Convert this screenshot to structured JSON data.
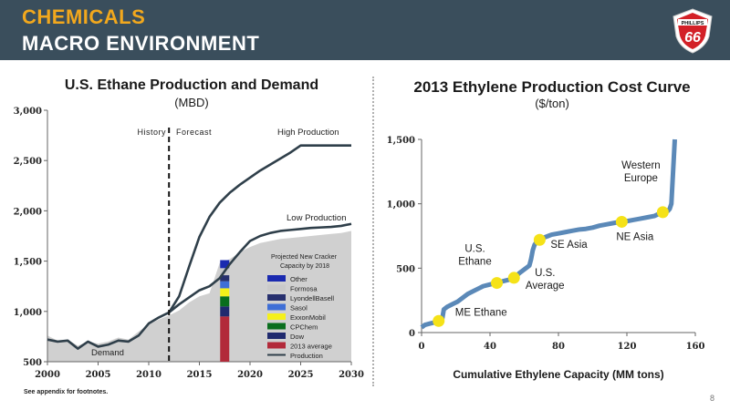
{
  "header": {
    "title_line1": "CHEMICALS",
    "title_line2": "MACRO ENVIRONMENT",
    "logo_text_top": "PHILLIPS",
    "logo_text_main": "66",
    "colors": {
      "banner": "#3a4e5c",
      "title_accent": "#f2a81d",
      "logo_red": "#d32027"
    }
  },
  "footnote": "See appendix for footnotes.",
  "page_number": "8",
  "chart_data": [
    {
      "type": "area",
      "title": "U.S. Ethane Production and Demand",
      "subtitle": "(MBD)",
      "xlim": [
        2000,
        2030
      ],
      "ylim": [
        500,
        3000
      ],
      "x_ticks": [
        "2000",
        "2005",
        "2010",
        "2015",
        "2020",
        "2025",
        "2030"
      ],
      "y_ticks": [
        "500",
        "1,000",
        "1,500",
        "2,000",
        "2,500",
        "3,000"
      ],
      "history_forecast_split": 2012,
      "labels": {
        "history": "History",
        "forecast": "Forecast",
        "high": "High Production",
        "low": "Low Production",
        "demand": "Demand",
        "cracker_title": "Projected New Cracker Capacity by 2018"
      },
      "demand_area": {
        "x": [
          2000,
          2001,
          2002,
          2003,
          2004,
          2005,
          2006,
          2007,
          2008,
          2009,
          2010,
          2011,
          2012,
          2013,
          2014,
          2015,
          2016,
          2017,
          2018,
          2019,
          2020,
          2021,
          2022,
          2023,
          2024,
          2025,
          2026,
          2027,
          2028,
          2029,
          2030
        ],
        "y": [
          760,
          710,
          720,
          660,
          700,
          680,
          700,
          740,
          720,
          800,
          870,
          920,
          960,
          1010,
          1090,
          1150,
          1180,
          1480,
          1520,
          1590,
          1640,
          1680,
          1700,
          1720,
          1730,
          1740,
          1750,
          1760,
          1770,
          1780,
          1800
        ]
      },
      "series": [
        {
          "name": "Production",
          "x": [
            2000,
            2001,
            2002,
            2003,
            2004,
            2005,
            2006,
            2007,
            2008,
            2009,
            2010,
            2011,
            2012
          ],
          "y": [
            720,
            700,
            710,
            630,
            700,
            650,
            670,
            710,
            700,
            760,
            880,
            940,
            990
          ]
        },
        {
          "name": "High Production",
          "x": [
            2012,
            2013,
            2014,
            2015,
            2016,
            2017,
            2018,
            2019,
            2020,
            2021,
            2022,
            2023,
            2024,
            2025,
            2026,
            2027,
            2028,
            2029,
            2030
          ],
          "y": [
            990,
            1150,
            1450,
            1740,
            1940,
            2080,
            2180,
            2260,
            2330,
            2400,
            2460,
            2520,
            2580,
            2650,
            2650,
            2650,
            2650,
            2650,
            2650
          ]
        },
        {
          "name": "Low Production",
          "x": [
            2012,
            2013,
            2014,
            2015,
            2016,
            2017,
            2018,
            2019,
            2020,
            2021,
            2022,
            2023,
            2024,
            2025,
            2026,
            2027,
            2028,
            2029,
            2030
          ],
          "y": [
            990,
            1070,
            1140,
            1210,
            1250,
            1330,
            1470,
            1590,
            1700,
            1750,
            1780,
            1800,
            1810,
            1820,
            1830,
            1835,
            1840,
            1850,
            1870
          ]
        }
      ],
      "stacked_bar": {
        "x": 2017.5,
        "segments": [
          {
            "name": "2013 average",
            "from": 500,
            "to": 950,
            "color": "#b22a3a"
          },
          {
            "name": "Dow",
            "from": 950,
            "to": 1050,
            "color": "#1f2a6e"
          },
          {
            "name": "CPChem",
            "from": 1050,
            "to": 1150,
            "color": "#0a6e1e"
          },
          {
            "name": "ExxonMobil",
            "from": 1150,
            "to": 1230,
            "color": "#f5f01a"
          },
          {
            "name": "Sasol",
            "from": 1230,
            "to": 1300,
            "color": "#3f6fd6"
          },
          {
            "name": "LyondellBasell",
            "from": 1300,
            "to": 1360,
            "color": "#27306e"
          },
          {
            "name": "Formosa",
            "from": 1360,
            "to": 1430,
            "color": "#c9c9c9"
          },
          {
            "name": "Other",
            "from": 1430,
            "to": 1510,
            "color": "#1a2ab0"
          }
        ]
      },
      "legend": [
        {
          "name": "Other",
          "color": "#1a2ab0",
          "kind": "box"
        },
        {
          "name": "Formosa",
          "color": "#c9c9c9",
          "kind": "box"
        },
        {
          "name": "LyondellBasell",
          "color": "#27306e",
          "kind": "box"
        },
        {
          "name": "Sasol",
          "color": "#3f6fd6",
          "kind": "box"
        },
        {
          "name": "ExxonMobil",
          "color": "#f5f01a",
          "kind": "box"
        },
        {
          "name": "CPChem",
          "color": "#0a6e1e",
          "kind": "box"
        },
        {
          "name": "Dow",
          "color": "#1f2a6e",
          "kind": "box"
        },
        {
          "name": "2013 average",
          "color": "#b22a3a",
          "kind": "box"
        },
        {
          "name": "Production",
          "color": "#2f3f4a",
          "kind": "line"
        }
      ],
      "colors": {
        "area": "#d0d0d0",
        "line": "#2f3f4a"
      }
    },
    {
      "type": "line",
      "title": "2013 Ethylene Production Cost Curve",
      "subtitle": "($/ton)",
      "xlabel": "Cumulative Ethylene Capacity (MM tons)",
      "xlim": [
        0,
        160
      ],
      "ylim": [
        0,
        1500
      ],
      "x_ticks": [
        "0",
        "40",
        "80",
        "120",
        "160"
      ],
      "y_ticks": [
        "0",
        "500",
        "1,000",
        "1,500"
      ],
      "curve": {
        "x": [
          0,
          2,
          5,
          8,
          12,
          13,
          15,
          18,
          21,
          24,
          27,
          30,
          33,
          36,
          39,
          42,
          45,
          48,
          51,
          54,
          57,
          60,
          63,
          64,
          65,
          66,
          67,
          68,
          70,
          72,
          74,
          76,
          80,
          84,
          88,
          92,
          96,
          100,
          104,
          108,
          112,
          116,
          120,
          124,
          128,
          132,
          136,
          140,
          142,
          144,
          145,
          146,
          147,
          148
        ],
        "y": [
          40,
          60,
          70,
          80,
          100,
          180,
          200,
          220,
          240,
          270,
          300,
          320,
          340,
          360,
          370,
          380,
          390,
          400,
          410,
          420,
          460,
          490,
          520,
          570,
          640,
          680,
          700,
          715,
          730,
          740,
          750,
          760,
          770,
          780,
          790,
          800,
          805,
          815,
          830,
          840,
          850,
          860,
          865,
          875,
          885,
          895,
          905,
          930,
          935,
          945,
          960,
          1000,
          1250,
          1500
        ]
      },
      "points": [
        {
          "label": "ME Ethane",
          "x": 10,
          "y": 90
        },
        {
          "label": "U.S. Ethane",
          "x": 44,
          "y": 385
        },
        {
          "label": "U.S. Average",
          "x": 54,
          "y": 425
        },
        {
          "label": "SE Asia",
          "x": 69,
          "y": 720
        },
        {
          "label": "NE Asia",
          "x": 117,
          "y": 860
        },
        {
          "label": "Western Europe",
          "x": 141,
          "y": 935
        }
      ],
      "colors": {
        "curve": "#5b89b8",
        "points": "#f5e218"
      }
    }
  ]
}
